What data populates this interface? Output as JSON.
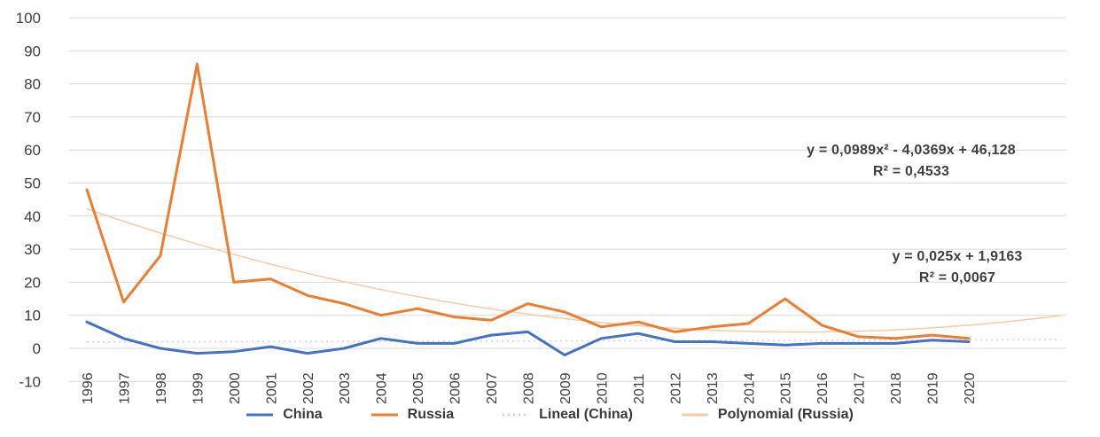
{
  "chart_data": {
    "type": "line",
    "title": "",
    "xlabel": "",
    "ylabel": "",
    "categories": [
      "1996",
      "1997",
      "1998",
      "1999",
      "2000",
      "2001",
      "2002",
      "2003",
      "2004",
      "2005",
      "2006",
      "2007",
      "2008",
      "2009",
      "2010",
      "2011",
      "2012",
      "2013",
      "2014",
      "2015",
      "2016",
      "2017",
      "2018",
      "2019",
      "2020"
    ],
    "series": [
      {
        "name": "China",
        "color": "#4472C4",
        "values": [
          8,
          3,
          0,
          -1.5,
          -1,
          0.5,
          -1.5,
          0,
          3,
          1.5,
          1.5,
          4,
          5,
          -2,
          3,
          4.5,
          2,
          2,
          1.5,
          1,
          1.5,
          1.5,
          1.5,
          2.5,
          2
        ]
      },
      {
        "name": "Russia",
        "color": "#ED7D31",
        "values": [
          48,
          14,
          28,
          86,
          20,
          21,
          16,
          13.5,
          10,
          12,
          9.5,
          8.5,
          13.5,
          11,
          6.5,
          8,
          5,
          6.5,
          7.5,
          15,
          7,
          3.5,
          3,
          4,
          3
        ]
      }
    ],
    "trendlines": [
      {
        "name": "Lineal (China)",
        "color": "#C9D3E8",
        "dash": "2 4",
        "coeffs": {
          "a": 0,
          "b": 0.025,
          "c": 1.9163
        },
        "x_start": 1,
        "x_end": 27.5
      },
      {
        "name": "Polynomial (Russia)",
        "color": "#F6CBA8",
        "dash": "",
        "coeffs": {
          "a": 0.0989,
          "b": -4.0369,
          "c": 46.128
        },
        "x_start": 1,
        "x_end": 27.5
      }
    ],
    "y_axis": {
      "min": -10,
      "max": 100,
      "tick_step": 10,
      "ticks": [
        100,
        90,
        80,
        70,
        60,
        50,
        40,
        30,
        20,
        10,
        0,
        -10
      ]
    },
    "grid": "horizontal",
    "legend_position": "bottom",
    "legend": [
      {
        "label": "China",
        "color": "#4472C4",
        "dash": ""
      },
      {
        "label": "Russia",
        "color": "#ED7D31",
        "dash": ""
      },
      {
        "label": "Lineal (China)",
        "color": "#C9D3E8",
        "dash": "2 4"
      },
      {
        "label": "Polynomial (Russia)",
        "color": "#F6CBA8",
        "dash": ""
      }
    ],
    "annotations": {
      "polynomial_equation": "y = 0,0989x² - 4,0369x + 46,128",
      "polynomial_r2": "R² = 0,4533",
      "lineal_equation": "y = 0,025x + 1,9163",
      "lineal_r2": "R² = 0,0067"
    },
    "colors": {
      "gridline": "#D9D9D9",
      "axis_label": "#404040",
      "background": "#FFFFFF"
    }
  }
}
